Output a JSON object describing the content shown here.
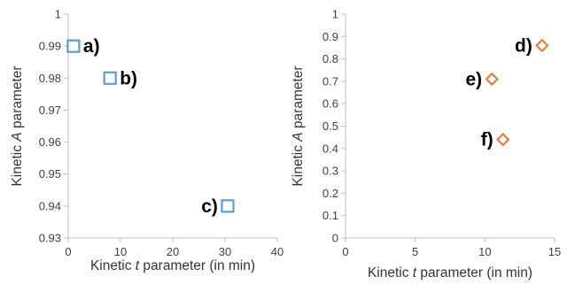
{
  "chart_data": [
    {
      "type": "scatter",
      "xlabel": {
        "pre": "Kinetic ",
        "var": "t",
        "post": " parameter (in min)"
      },
      "ylabel": {
        "pre": "Kinetic ",
        "var": "A",
        "post": " parameter"
      },
      "xlim": [
        0,
        40
      ],
      "ylim": [
        0.93,
        1
      ],
      "xticks": [
        0,
        10,
        20,
        30,
        40
      ],
      "yticks": [
        0.93,
        0.94,
        0.95,
        0.96,
        0.97,
        0.98,
        0.99,
        1
      ],
      "ytick_labels": [
        "0.93",
        "0.94",
        "0.95",
        "0.96",
        "0.97",
        "0.98",
        "0.99",
        "1"
      ],
      "grid": false,
      "marker": "square",
      "color": "#5B9BD5",
      "points": [
        {
          "label": "a)",
          "x": 1,
          "y": 0.99,
          "label_side": "right"
        },
        {
          "label": "b)",
          "x": 8,
          "y": 0.98,
          "label_side": "right"
        },
        {
          "label": "c)",
          "x": 30.5,
          "y": 0.94,
          "label_side": "left"
        }
      ]
    },
    {
      "type": "scatter",
      "xlabel": {
        "pre": "Kinetic ",
        "var": "t",
        "post": " parameter (in min)"
      },
      "ylabel": {
        "pre": "Kinetic ",
        "var": "A",
        "post": " parameter"
      },
      "xlim": [
        0,
        15
      ],
      "ylim": [
        0,
        1
      ],
      "xticks": [
        0,
        5,
        10,
        15
      ],
      "yticks": [
        0,
        0.1,
        0.2,
        0.3,
        0.4,
        0.5,
        0.6,
        0.7,
        0.8,
        0.9,
        1
      ],
      "ytick_labels": [
        "0",
        "0.1",
        "0.2",
        "0.3",
        "0.4",
        "0.5",
        "0.6",
        "0.7",
        "0.8",
        "0.9",
        "1"
      ],
      "grid": false,
      "marker": "diamond",
      "color": "#ED7D31",
      "points": [
        {
          "label": "d)",
          "x": 14.1,
          "y": 0.86,
          "label_side": "left"
        },
        {
          "label": "e)",
          "x": 10.5,
          "y": 0.71,
          "label_side": "left"
        },
        {
          "label": "f)",
          "x": 11.3,
          "y": 0.44,
          "label_side": "left"
        }
      ]
    }
  ]
}
